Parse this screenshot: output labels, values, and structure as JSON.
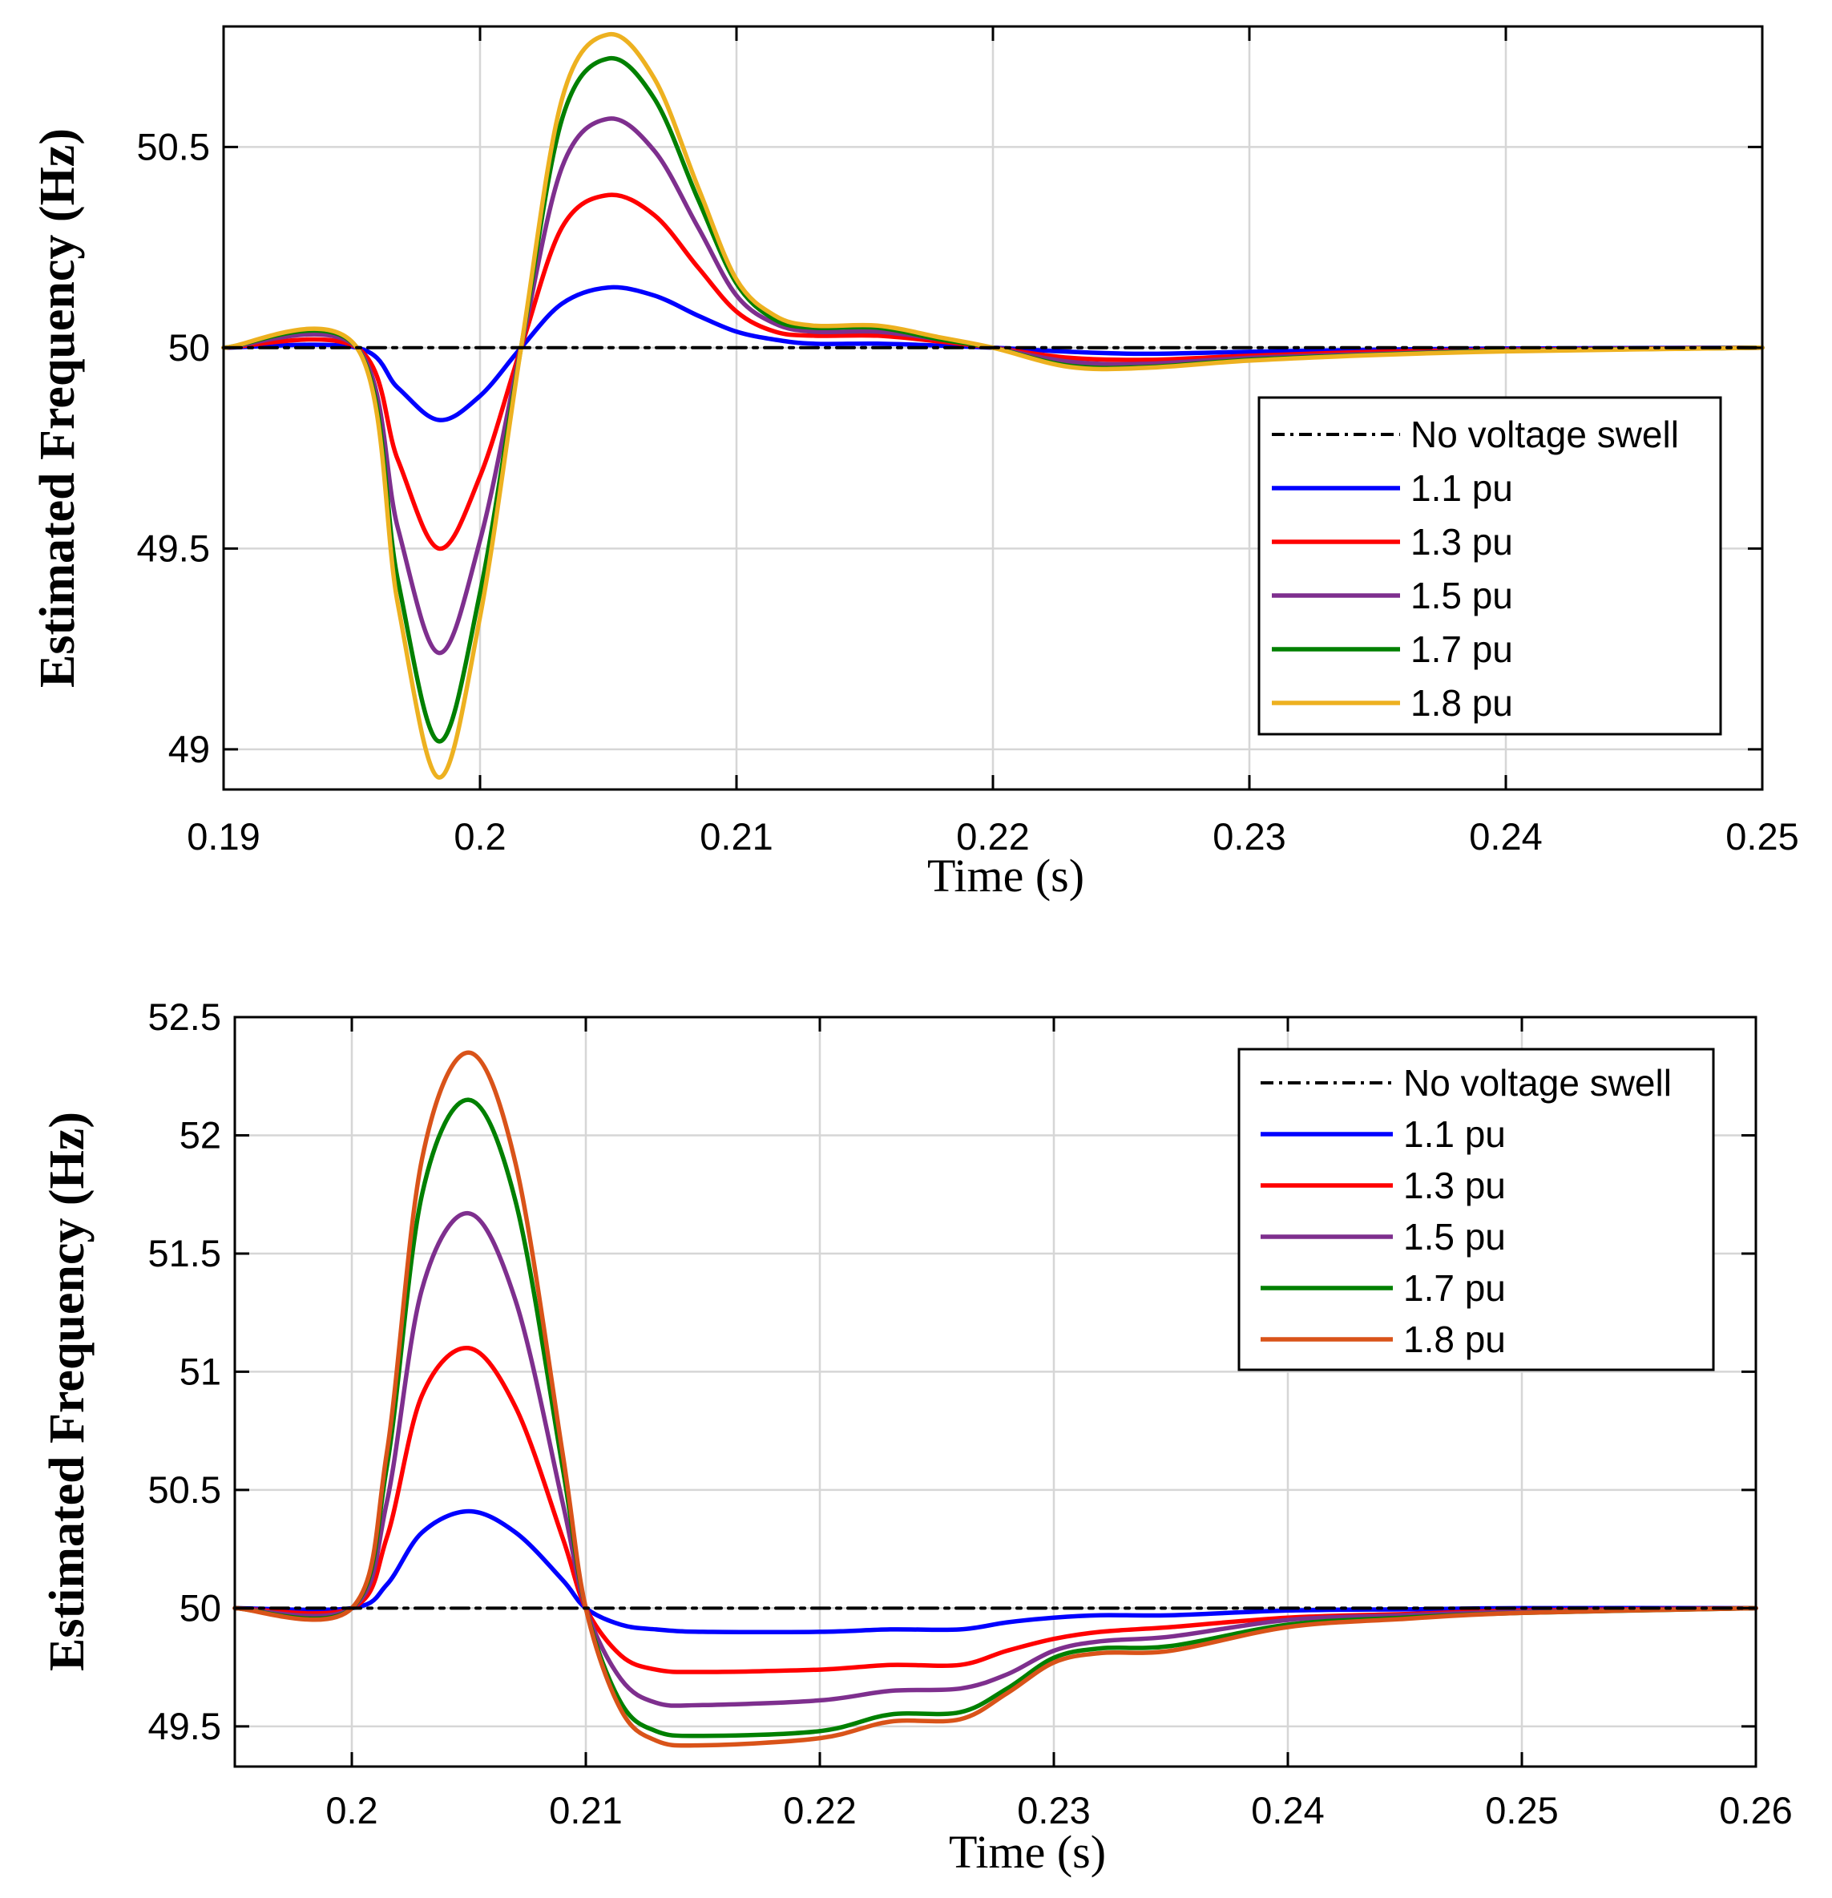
{
  "chart_data": [
    {
      "type": "line",
      "xlabel": "Time (s)",
      "ylabel": "Estimated Frequency (Hz)",
      "xlim": [
        0.19,
        0.25
      ],
      "ylim": [
        48.9,
        50.8
      ],
      "xticks": [
        0.19,
        0.2,
        0.21,
        0.22,
        0.23,
        0.24,
        0.25
      ],
      "xtick_labels": [
        "0.19",
        "0.2",
        "0.21",
        "0.22",
        "0.23",
        "0.24",
        "0.25"
      ],
      "yticks": [
        49,
        49.5,
        50,
        50.5
      ],
      "ytick_labels": [
        "49",
        "49.5",
        "50",
        "50.5"
      ],
      "grid": true,
      "legend_position": "right",
      "series": [
        {
          "name": "No voltage swell",
          "color": "#000000",
          "style": "dashdot",
          "x": [
            0.19,
            0.25
          ],
          "y": [
            50.0,
            50.0
          ]
        },
        {
          "name": "1.1 pu",
          "color": "#0000ff",
          "style": "solid",
          "x": [
            0.19,
            0.1952,
            0.1968,
            0.1984,
            0.2,
            0.2016,
            0.2032,
            0.205,
            0.2068,
            0.2085,
            0.21,
            0.2115,
            0.213,
            0.2155,
            0.218,
            0.22,
            0.223,
            0.226,
            0.23,
            0.235,
            0.24,
            0.25
          ],
          "y": [
            50.0,
            50.0,
            49.9,
            49.82,
            49.88,
            50.0,
            50.11,
            50.15,
            50.13,
            50.08,
            50.04,
            50.02,
            50.01,
            50.01,
            50.005,
            50.0,
            49.99,
            49.985,
            49.99,
            49.995,
            49.998,
            50.0
          ]
        },
        {
          "name": "1.3 pu",
          "color": "#ff0000",
          "style": "solid",
          "x": [
            0.19,
            0.1952,
            0.1968,
            0.1984,
            0.2,
            0.2016,
            0.2032,
            0.205,
            0.2068,
            0.2085,
            0.21,
            0.2115,
            0.213,
            0.2155,
            0.218,
            0.22,
            0.223,
            0.226,
            0.23,
            0.235,
            0.24,
            0.25
          ],
          "y": [
            50.0,
            50.0,
            49.72,
            49.5,
            49.68,
            50.0,
            50.3,
            50.38,
            50.33,
            50.2,
            50.09,
            50.04,
            50.03,
            50.03,
            50.015,
            50.0,
            49.975,
            49.97,
            49.98,
            49.99,
            49.995,
            50.0
          ]
        },
        {
          "name": "1.5 pu",
          "color": "#7e2f8e",
          "style": "solid",
          "x": [
            0.19,
            0.1952,
            0.1968,
            0.1984,
            0.2,
            0.2016,
            0.2032,
            0.205,
            0.2068,
            0.2085,
            0.21,
            0.2115,
            0.213,
            0.2155,
            0.218,
            0.22,
            0.223,
            0.226,
            0.23,
            0.235,
            0.24,
            0.25
          ],
          "y": [
            50.0,
            50.0,
            49.55,
            49.24,
            49.52,
            50.0,
            50.45,
            50.57,
            50.49,
            50.3,
            50.13,
            50.06,
            50.04,
            50.04,
            50.02,
            50.0,
            49.965,
            49.96,
            49.975,
            49.985,
            49.993,
            50.0
          ]
        },
        {
          "name": "1.7 pu",
          "color": "#008000",
          "style": "solid",
          "x": [
            0.19,
            0.1952,
            0.1968,
            0.1984,
            0.2,
            0.2016,
            0.2032,
            0.205,
            0.2068,
            0.2085,
            0.21,
            0.2115,
            0.213,
            0.2155,
            0.218,
            0.22,
            0.223,
            0.226,
            0.23,
            0.235,
            0.24,
            0.25
          ],
          "y": [
            50.0,
            50.0,
            49.42,
            49.02,
            49.39,
            50.0,
            50.57,
            50.72,
            50.62,
            50.37,
            50.16,
            50.07,
            50.05,
            50.05,
            50.02,
            50.0,
            49.955,
            49.952,
            49.97,
            49.983,
            49.992,
            50.0
          ]
        },
        {
          "name": "1.8 pu",
          "color": "#edb120",
          "style": "solid",
          "x": [
            0.19,
            0.1952,
            0.1968,
            0.1984,
            0.2,
            0.2016,
            0.2032,
            0.205,
            0.2068,
            0.2085,
            0.21,
            0.2115,
            0.213,
            0.2155,
            0.218,
            0.22,
            0.223,
            0.226,
            0.23,
            0.235,
            0.24,
            0.25
          ],
          "y": [
            50.0,
            50.0,
            49.36,
            48.93,
            49.33,
            50.0,
            50.62,
            50.78,
            50.67,
            50.4,
            50.17,
            50.08,
            50.055,
            50.055,
            50.025,
            50.0,
            49.952,
            49.95,
            49.968,
            49.982,
            49.991,
            50.0
          ]
        }
      ]
    },
    {
      "type": "line",
      "xlabel": "Time (s)",
      "ylabel": "Estimated Frequency (Hz)",
      "xlim": [
        0.195,
        0.26
      ],
      "ylim": [
        49.33,
        52.5
      ],
      "xticks": [
        0.2,
        0.21,
        0.22,
        0.23,
        0.24,
        0.25,
        0.26
      ],
      "xtick_labels": [
        "0.2",
        "0.21",
        "0.22",
        "0.23",
        "0.24",
        "0.25",
        "0.26"
      ],
      "yticks": [
        49.5,
        50,
        50.5,
        51,
        51.5,
        52,
        52.5
      ],
      "ytick_labels": [
        "49.5",
        "50",
        "50.5",
        "51",
        "51.5",
        "52",
        "52.5"
      ],
      "grid": true,
      "legend_position": "top-right",
      "series": [
        {
          "name": "No voltage swell",
          "color": "#000000",
          "style": "dashdot",
          "x": [
            0.195,
            0.26
          ],
          "y": [
            50.0,
            50.0
          ]
        },
        {
          "name": "1.1 pu",
          "color": "#0000ff",
          "style": "solid",
          "x": [
            0.195,
            0.2,
            0.2015,
            0.203,
            0.205,
            0.207,
            0.209,
            0.21,
            0.2115,
            0.213,
            0.215,
            0.22,
            0.223,
            0.226,
            0.228,
            0.23,
            0.232,
            0.235,
            0.24,
            0.245,
            0.25,
            0.26
          ],
          "y": [
            50.0,
            50.0,
            50.1,
            50.32,
            50.41,
            50.32,
            50.12,
            50.0,
            49.93,
            49.91,
            49.9,
            49.9,
            49.91,
            49.91,
            49.94,
            49.96,
            49.97,
            49.97,
            49.99,
            49.995,
            50.0,
            50.0
          ]
        },
        {
          "name": "1.3 pu",
          "color": "#ff0000",
          "style": "solid",
          "x": [
            0.195,
            0.2,
            0.2015,
            0.203,
            0.205,
            0.207,
            0.209,
            0.21,
            0.2115,
            0.213,
            0.215,
            0.22,
            0.223,
            0.226,
            0.228,
            0.23,
            0.232,
            0.235,
            0.24,
            0.245,
            0.25,
            0.26
          ],
          "y": [
            50.0,
            50.0,
            50.3,
            50.9,
            51.1,
            50.85,
            50.3,
            50.0,
            49.8,
            49.74,
            49.73,
            49.74,
            49.76,
            49.76,
            49.82,
            49.87,
            49.9,
            49.92,
            49.96,
            49.975,
            49.99,
            50.0
          ]
        },
        {
          "name": "1.5 pu",
          "color": "#7e2f8e",
          "style": "solid",
          "x": [
            0.195,
            0.2,
            0.2015,
            0.203,
            0.205,
            0.207,
            0.209,
            0.21,
            0.2115,
            0.213,
            0.215,
            0.22,
            0.223,
            0.226,
            0.228,
            0.23,
            0.232,
            0.235,
            0.24,
            0.245,
            0.25,
            0.26
          ],
          "y": [
            50.0,
            50.0,
            50.45,
            51.35,
            51.67,
            51.3,
            50.45,
            50.0,
            49.7,
            49.6,
            49.59,
            49.61,
            49.65,
            49.66,
            49.72,
            49.82,
            49.86,
            49.88,
            49.95,
            49.97,
            49.985,
            50.0
          ]
        },
        {
          "name": "1.7 pu",
          "color": "#008000",
          "style": "solid",
          "x": [
            0.195,
            0.2,
            0.2015,
            0.203,
            0.205,
            0.207,
            0.209,
            0.21,
            0.2115,
            0.213,
            0.215,
            0.22,
            0.223,
            0.226,
            0.228,
            0.23,
            0.232,
            0.235,
            0.24,
            0.245,
            0.25,
            0.26
          ],
          "y": [
            50.0,
            50.0,
            50.6,
            51.75,
            52.15,
            51.72,
            50.6,
            50.0,
            49.6,
            49.48,
            49.46,
            49.48,
            49.55,
            49.56,
            49.66,
            49.79,
            49.83,
            49.84,
            49.93,
            49.96,
            49.98,
            50.0
          ]
        },
        {
          "name": "1.8 pu",
          "color": "#d95319",
          "style": "solid",
          "x": [
            0.195,
            0.2,
            0.2015,
            0.203,
            0.205,
            0.207,
            0.209,
            0.21,
            0.2115,
            0.213,
            0.215,
            0.22,
            0.223,
            0.226,
            0.228,
            0.23,
            0.232,
            0.235,
            0.24,
            0.245,
            0.25,
            0.26
          ],
          "y": [
            50.0,
            50.0,
            50.66,
            51.9,
            52.35,
            51.88,
            50.66,
            50.0,
            49.57,
            49.44,
            49.42,
            49.45,
            49.52,
            49.53,
            49.64,
            49.77,
            49.81,
            49.82,
            49.92,
            49.955,
            49.98,
            50.0
          ]
        }
      ]
    }
  ]
}
